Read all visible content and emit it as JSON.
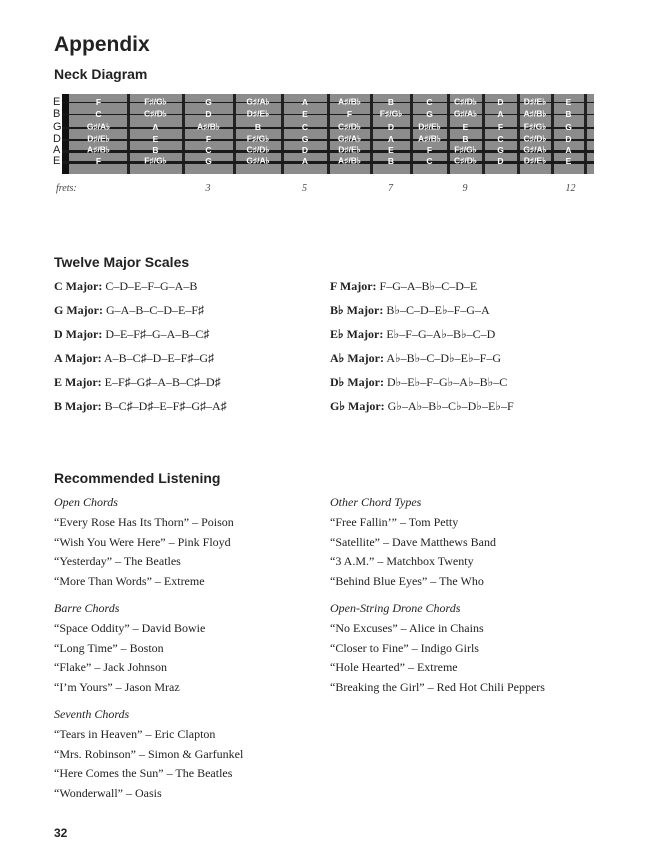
{
  "title": "Appendix",
  "neck": {
    "heading": "Neck Diagram",
    "strings": [
      {
        "name": "E",
        "notes": [
          "F",
          "F♯/G♭",
          "G",
          "G♯/A♭",
          "A",
          "A♯/B♭",
          "B",
          "C",
          "C♯/D♭",
          "D",
          "D♯/E♭",
          "E"
        ]
      },
      {
        "name": "B",
        "notes": [
          "C",
          "C♯/D♭",
          "D",
          "D♯/E♭",
          "E",
          "F",
          "F♯/G♭",
          "G",
          "G♯/A♭",
          "A",
          "A♯/B♭",
          "B"
        ]
      },
      {
        "name": "G",
        "notes": [
          "G♯/A♭",
          "A",
          "A♯/B♭",
          "B",
          "C",
          "C♯/D♭",
          "D",
          "D♯/E♭",
          "E",
          "F",
          "F♯/G♭",
          "G"
        ]
      },
      {
        "name": "D",
        "notes": [
          "D♯/E♭",
          "E",
          "F",
          "F♯/G♭",
          "G",
          "G♯/A♭",
          "A",
          "A♯/B♭",
          "B",
          "C",
          "C♯/D♭",
          "D"
        ]
      },
      {
        "name": "A",
        "notes": [
          "A♯/B♭",
          "B",
          "C",
          "C♯/D♭",
          "D",
          "D♯/E♭",
          "E",
          "F",
          "F♯/G♭",
          "G",
          "G♯/A♭",
          "A"
        ]
      },
      {
        "name": "E",
        "notes": [
          "F",
          "F♯/G♭",
          "G",
          "G♯/A♭",
          "A",
          "A♯/B♭",
          "B",
          "C",
          "C♯/D♭",
          "D",
          "D♯/E♭",
          "E"
        ]
      }
    ],
    "frets_label": "frets:",
    "fret_markers": [
      "3",
      "5",
      "7",
      "9",
      "12"
    ]
  },
  "scales": {
    "heading": "Twelve Major Scales",
    "left": [
      {
        "name": "C Major:",
        "notes": "C–D–E–F–G–A–B"
      },
      {
        "name": "G Major:",
        "notes": "G–A–B–C–D–E–F♯"
      },
      {
        "name": "D Major:",
        "notes": "D–E–F♯–G–A–B–C♯"
      },
      {
        "name": "A Major:",
        "notes": "A–B–C♯–D–E–F♯–G♯"
      },
      {
        "name": "E Major:",
        "notes": "E–F♯–G♯–A–B–C♯–D♯"
      },
      {
        "name": "B Major:",
        "notes": "B–C♯–D♯–E–F♯–G♯–A♯"
      }
    ],
    "right": [
      {
        "name": "F Major:",
        "notes": "F–G–A–B♭–C–D–E"
      },
      {
        "name": "B♭ Major:",
        "notes": "B♭–C–D–E♭–F–G–A"
      },
      {
        "name": "E♭ Major:",
        "notes": "E♭–F–G–A♭–B♭–C–D"
      },
      {
        "name": "A♭ Major:",
        "notes": "A♭–B♭–C–D♭–E♭–F–G"
      },
      {
        "name": "D♭ Major:",
        "notes": "D♭–E♭–F–G♭–A♭–B♭–C"
      },
      {
        "name": "G♭ Major:",
        "notes": "G♭–A♭–B♭–C♭–D♭–E♭–F"
      }
    ]
  },
  "listening": {
    "heading": "Recommended Listening",
    "left": [
      {
        "category": "Open Chords",
        "songs": [
          "“Every Rose Has Its Thorn” – Poison",
          "“Wish You Were Here” – Pink Floyd",
          "“Yesterday” – The Beatles",
          "“More Than Words” – Extreme"
        ]
      },
      {
        "category": "Barre Chords",
        "songs": [
          "“Space Oddity” – David Bowie",
          "“Long Time” – Boston",
          "“Flake” – Jack Johnson",
          "“I’m Yours” – Jason Mraz"
        ]
      },
      {
        "category": "Seventh Chords",
        "songs": [
          "“Tears in Heaven” – Eric Clapton",
          "“Mrs. Robinson” – Simon & Garfunkel",
          "“Here Comes the Sun” – The Beatles",
          "“Wonderwall” – Oasis"
        ]
      }
    ],
    "right": [
      {
        "category": "Other Chord Types",
        "songs": [
          "“Free Fallin’” – Tom Petty",
          "“Satellite” – Dave Matthews Band",
          "“3 A.M.” – Matchbox Twenty",
          "“Behind Blue Eyes” – The Who"
        ]
      },
      {
        "category": "Open-String Drone Chords",
        "songs": [
          "“No Excuses” – Alice in Chains",
          "“Closer to Fine” – Indigo Girls",
          "“Hole Hearted” – Extreme",
          "“Breaking the Girl” – Red Hot Chili Peppers"
        ]
      }
    ]
  },
  "page_number": "32"
}
